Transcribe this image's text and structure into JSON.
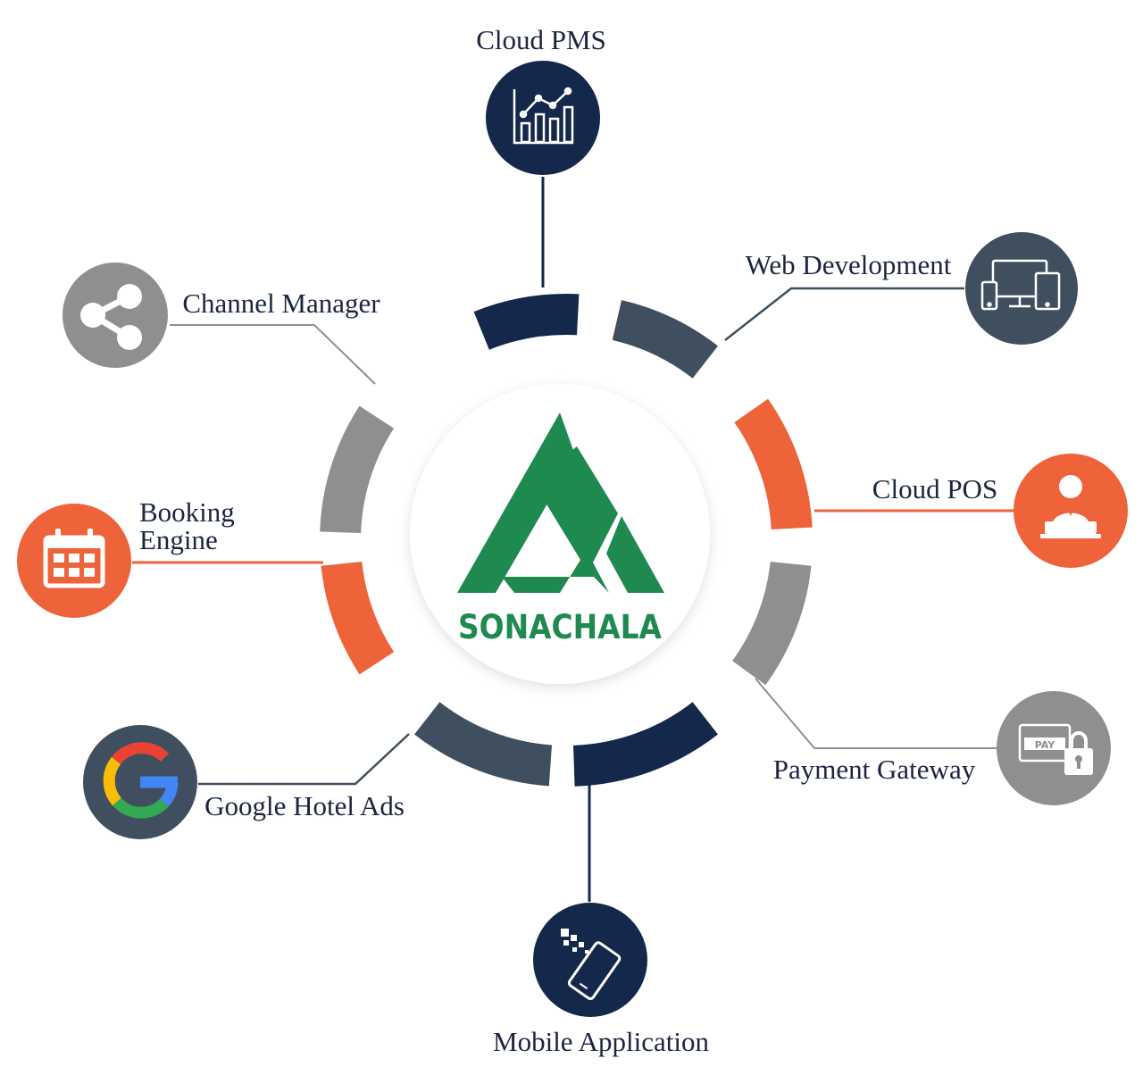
{
  "brand": {
    "name": "SONACHALA",
    "color": "#1e8a4f"
  },
  "colors": {
    "navy": "#13284a",
    "slate": "#3f4f5f",
    "orange": "#ee6339",
    "gray": "#8f8f8f",
    "label": "#1b2440"
  },
  "services": [
    {
      "key": "cloud_pms",
      "label": "Cloud PMS",
      "icon": "bar-chart-icon",
      "color": "navy"
    },
    {
      "key": "web_development",
      "label": "Web Development",
      "icon": "devices-icon",
      "color": "slate"
    },
    {
      "key": "cloud_pos",
      "label": "Cloud POS",
      "icon": "cashier-icon",
      "color": "orange"
    },
    {
      "key": "payment_gateway",
      "label": "Payment Gateway",
      "icon": "pay-lock-icon",
      "color": "gray"
    },
    {
      "key": "mobile_application",
      "label": "Mobile Application",
      "icon": "mobile-phone-icon",
      "color": "navy"
    },
    {
      "key": "google_hotel_ads",
      "label": "Google Hotel Ads",
      "icon": "google-g-icon",
      "color": "slate"
    },
    {
      "key": "booking_engine",
      "label_lines": [
        "Booking",
        "Engine"
      ],
      "icon": "calendar-icon",
      "color": "orange"
    },
    {
      "key": "channel_manager",
      "label": "Channel Manager",
      "icon": "share-icon",
      "color": "gray"
    }
  ]
}
